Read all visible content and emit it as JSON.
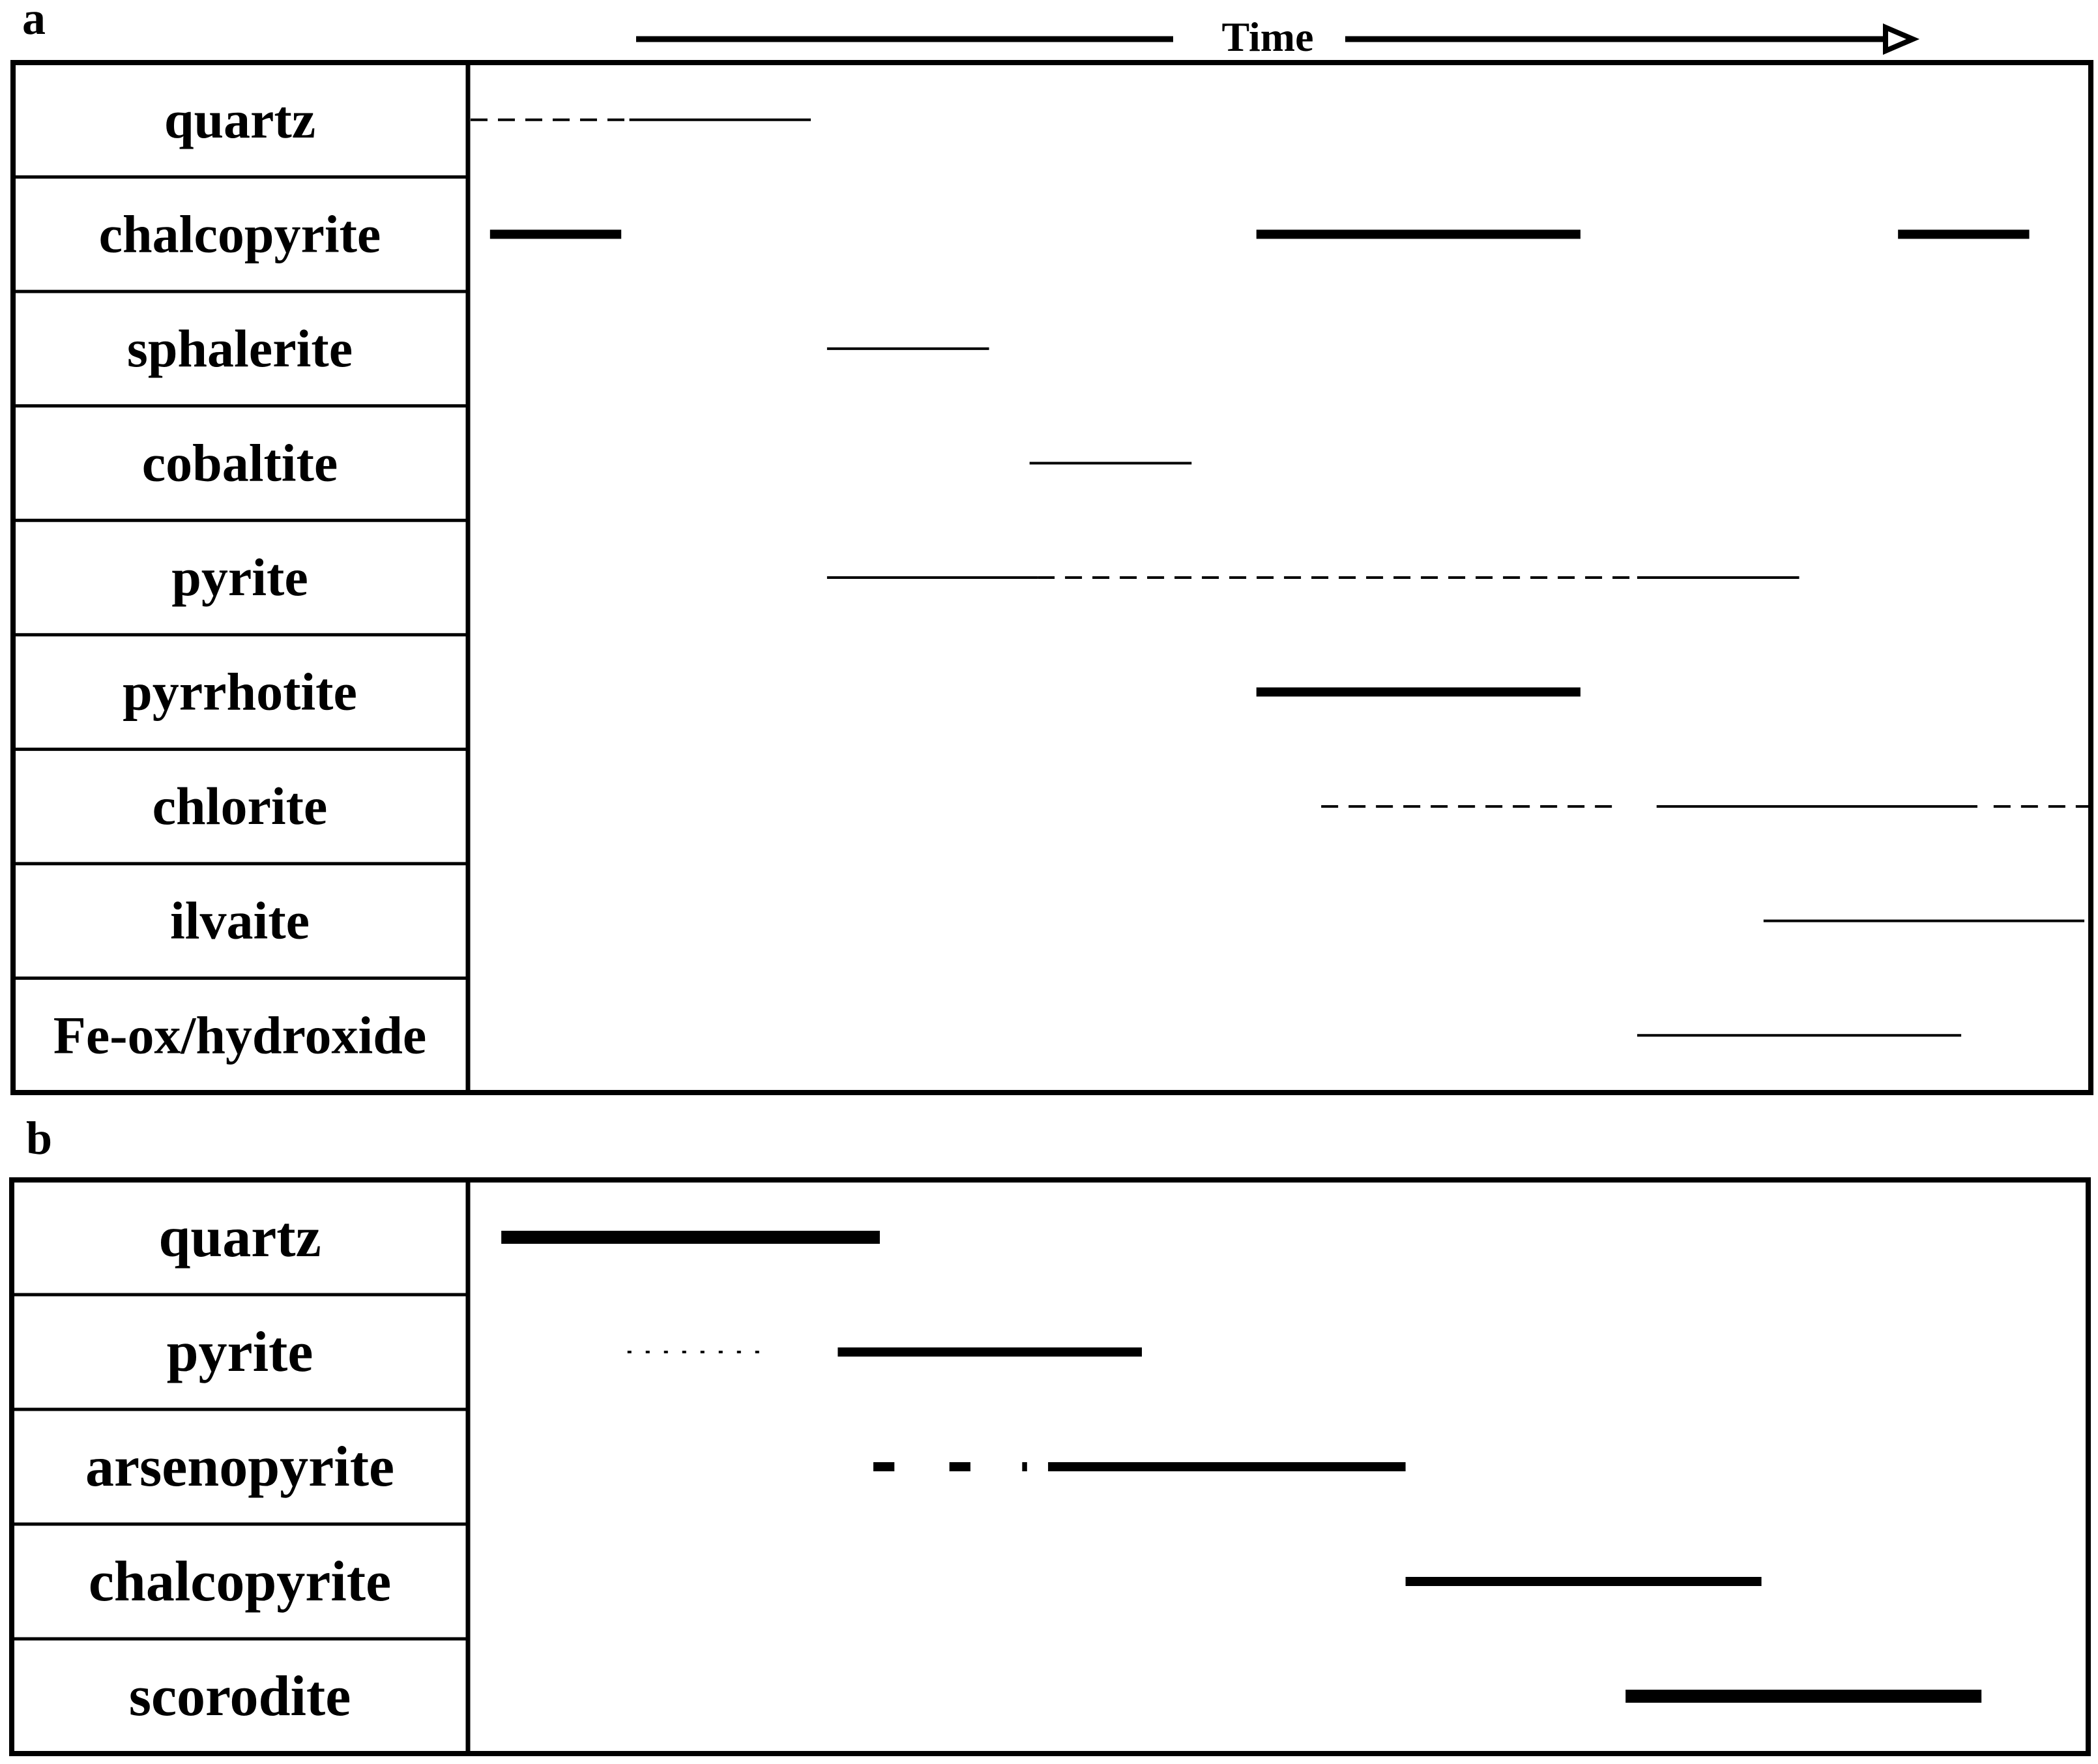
{
  "time_label": "Time",
  "panels": [
    {
      "label": "a",
      "minerals": [
        {
          "name": "quartz",
          "segments": [
            {
              "start": 0.0,
              "end": 0.098,
              "style": "dashed",
              "weight": "thin"
            },
            {
              "start": 0.098,
              "end": 0.21,
              "style": "solid",
              "weight": "thin"
            }
          ]
        },
        {
          "name": "chalcopyrite",
          "segments": [
            {
              "start": 0.012,
              "end": 0.093,
              "style": "solid",
              "weight": "thick"
            },
            {
              "start": 0.485,
              "end": 0.685,
              "style": "solid",
              "weight": "thick"
            },
            {
              "start": 0.881,
              "end": 0.962,
              "style": "solid",
              "weight": "thick"
            }
          ]
        },
        {
          "name": "sphalerite",
          "segments": [
            {
              "start": 0.22,
              "end": 0.32,
              "style": "solid",
              "weight": "thin"
            }
          ]
        },
        {
          "name": "cobaltite",
          "segments": [
            {
              "start": 0.345,
              "end": 0.445,
              "style": "solid",
              "weight": "thin"
            }
          ]
        },
        {
          "name": "pyrite",
          "segments": [
            {
              "start": 0.22,
              "end": 0.35,
              "style": "solid",
              "weight": "thin"
            },
            {
              "start": 0.35,
              "end": 0.72,
              "style": "dashed",
              "weight": "thin"
            },
            {
              "start": 0.72,
              "end": 0.82,
              "style": "solid",
              "weight": "thin"
            }
          ]
        },
        {
          "name": "pyrrhotite",
          "segments": [
            {
              "start": 0.485,
              "end": 0.685,
              "style": "solid",
              "weight": "thick"
            }
          ]
        },
        {
          "name": "chlorite",
          "segments": [
            {
              "start": 0.525,
              "end": 0.705,
              "style": "dashed",
              "weight": "thin"
            },
            {
              "start": 0.732,
              "end": 0.93,
              "style": "solid",
              "weight": "thin"
            },
            {
              "start": 0.94,
              "end": 1.0,
              "style": "dashed",
              "weight": "thin"
            }
          ]
        },
        {
          "name": "ilvaite",
          "segments": [
            {
              "start": 0.798,
              "end": 0.996,
              "style": "solid",
              "weight": "thin"
            }
          ]
        },
        {
          "name": "Fe-ox/hydroxide",
          "segments": [
            {
              "start": 0.72,
              "end": 0.92,
              "style": "solid",
              "weight": "thin"
            }
          ]
        }
      ]
    },
    {
      "label": "b",
      "minerals": [
        {
          "name": "quartz",
          "segments": [
            {
              "start": 0.019,
              "end": 0.253,
              "style": "solid",
              "weight": "heavy"
            }
          ]
        },
        {
          "name": "pyrite",
          "segments": [
            {
              "start": 0.097,
              "end": 0.182,
              "style": "dotted",
              "weight": "thin"
            },
            {
              "start": 0.227,
              "end": 0.415,
              "style": "solid",
              "weight": "thick"
            }
          ]
        },
        {
          "name": "arsenopyrite",
          "segments": [
            {
              "start": 0.249,
              "end": 0.262,
              "style": "solid",
              "weight": "thick"
            },
            {
              "start": 0.296,
              "end": 0.309,
              "style": "solid",
              "weight": "thick"
            },
            {
              "start": 0.341,
              "end": 0.344,
              "style": "solid",
              "weight": "thick"
            },
            {
              "start": 0.357,
              "end": 0.578,
              "style": "solid",
              "weight": "thick"
            }
          ]
        },
        {
          "name": "chalcopyrite",
          "segments": [
            {
              "start": 0.578,
              "end": 0.798,
              "style": "solid",
              "weight": "thick"
            }
          ]
        },
        {
          "name": "scorodite",
          "segments": [
            {
              "start": 0.714,
              "end": 0.934,
              "style": "solid",
              "weight": "heavy"
            }
          ]
        }
      ]
    }
  ]
}
